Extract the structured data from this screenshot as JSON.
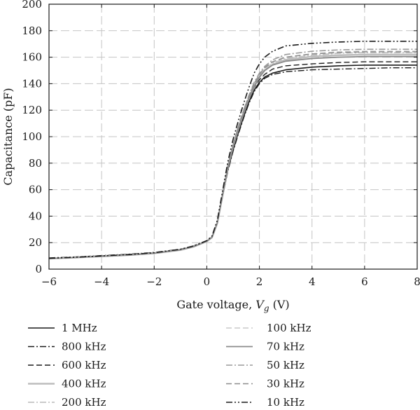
{
  "chart_data": {
    "type": "line",
    "xlabel_prefix": "Gate voltage, ",
    "xlabel_var": "V",
    "xlabel_sub": "g",
    "xlabel_suffix": " (V)",
    "ylabel": "Capacitance (pF)",
    "xlim": [
      -6,
      8
    ],
    "ylim": [
      0,
      200
    ],
    "x_ticks": [
      -6,
      -4,
      -2,
      0,
      2,
      4,
      6,
      8
    ],
    "x_tick_labels": [
      "−6",
      "−4",
      "−2",
      "0",
      "2",
      "4",
      "6",
      "8"
    ],
    "y_ticks": [
      0,
      20,
      40,
      60,
      80,
      100,
      120,
      140,
      160,
      180,
      200
    ],
    "y_tick_labels": [
      "0",
      "20",
      "40",
      "60",
      "80",
      "100",
      "120",
      "140",
      "160",
      "180",
      "200"
    ],
    "grid": true,
    "legend_position": "below",
    "x": [
      -6,
      -5,
      -4,
      -3,
      -2,
      -1,
      -0.5,
      0,
      0.2,
      0.4,
      0.6,
      0.8,
      1.0,
      1.2,
      1.4,
      1.6,
      1.8,
      2.0,
      2.2,
      2.5,
      3.0,
      4.0,
      5.0,
      6.0,
      7.0,
      8.0
    ],
    "series": [
      {
        "name": "1 MHz",
        "color": "#1a1a1a",
        "dash": "",
        "width": 1.6,
        "values": [
          8,
          8.8,
          9.7,
          10.6,
          12,
          14.5,
          17,
          21,
          24,
          35,
          55,
          75,
          90,
          103,
          115,
          126,
          135,
          141,
          145,
          148,
          150.5,
          152.5,
          153.5,
          154,
          154,
          154
        ]
      },
      {
        "name": "800 kHz",
        "color": "#1a1a1a",
        "dash": "9,3,2,3",
        "width": 1.4,
        "values": [
          8.5,
          9.2,
          10.2,
          11.2,
          12.6,
          15,
          17.5,
          21.5,
          24.5,
          35,
          55,
          74,
          89,
          102,
          114,
          125,
          134,
          140,
          144,
          147,
          149,
          150.5,
          151,
          151.5,
          152,
          152
        ]
      },
      {
        "name": "600 kHz",
        "color": "#1a1a1a",
        "dash": "8,4",
        "width": 1.4,
        "values": [
          8.3,
          9,
          10,
          11,
          12.3,
          14.8,
          17.3,
          21.2,
          24.3,
          35,
          56,
          76,
          92,
          105,
          117,
          128,
          137,
          143,
          147,
          151,
          153.5,
          155,
          156,
          156.5,
          156.5,
          156.5
        ]
      },
      {
        "name": "400 kHz",
        "color": "#bdbdbd",
        "dash": "",
        "width": 2.6,
        "values": [
          8,
          8.8,
          9.7,
          10.6,
          12,
          14.5,
          17,
          21,
          24,
          35,
          56,
          77,
          93,
          106,
          118,
          129,
          138,
          145,
          150,
          154.5,
          158,
          160.5,
          161.5,
          162,
          162,
          162
        ]
      },
      {
        "name": "200 kHz",
        "color": "#c2c2c2",
        "dash": "9,3,2,3",
        "width": 1.8,
        "values": [
          8,
          8.8,
          9.7,
          10.6,
          12,
          14.5,
          17,
          21,
          24,
          35,
          56,
          77,
          93,
          107,
          119,
          130,
          139,
          146,
          151,
          155.5,
          159,
          161.5,
          163,
          163.5,
          163.5,
          163.5
        ]
      },
      {
        "name": "100 kHz",
        "color": "#c8c8c8",
        "dash": "8,4",
        "width": 1.6,
        "values": [
          8,
          8.8,
          9.7,
          10.6,
          12,
          14.5,
          17,
          21,
          24,
          35,
          57,
          78,
          94,
          108,
          120,
          131,
          140,
          147,
          152,
          156.5,
          160,
          162.5,
          164,
          164.5,
          164.5,
          164.5
        ]
      },
      {
        "name": "70 kHz",
        "color": "#8a8a8a",
        "dash": "",
        "width": 1.8,
        "values": [
          8,
          8.8,
          9.7,
          10.6,
          12,
          14.5,
          17,
          21,
          24,
          35,
          56,
          77,
          93,
          106,
          118,
          129,
          138,
          145,
          150,
          154,
          157,
          159,
          160,
          160.5,
          160.5,
          160.5
        ]
      },
      {
        "name": "50 kHz",
        "color": "#9a9a9a",
        "dash": "9,3,2,3",
        "width": 1.6,
        "values": [
          8,
          8.8,
          9.7,
          10.6,
          12,
          14.5,
          17,
          21,
          24,
          35,
          57,
          78,
          94,
          108,
          120,
          131,
          141,
          148,
          153,
          158,
          162,
          164.5,
          165.5,
          166,
          166,
          166
        ]
      },
      {
        "name": "30 kHz",
        "color": "#8e8e8e",
        "dash": "8,4",
        "width": 1.6,
        "values": [
          8,
          8.8,
          9.7,
          10.6,
          12,
          14.5,
          17,
          21,
          24,
          35,
          56,
          77,
          93,
          107,
          119,
          130,
          140,
          147,
          152,
          156.5,
          160,
          162.5,
          163.5,
          164,
          164,
          164
        ]
      },
      {
        "name": "10 kHz",
        "color": "#1a1a1a",
        "dash": "9,3,2,3,2,3",
        "width": 1.6,
        "values": [
          8.2,
          9,
          10,
          11,
          12.4,
          15,
          17.5,
          21.5,
          25,
          37,
          59,
          81,
          98,
          112,
          125,
          137,
          148,
          155,
          160,
          164.5,
          168.5,
          170.5,
          171.5,
          172,
          172,
          172
        ]
      }
    ]
  }
}
